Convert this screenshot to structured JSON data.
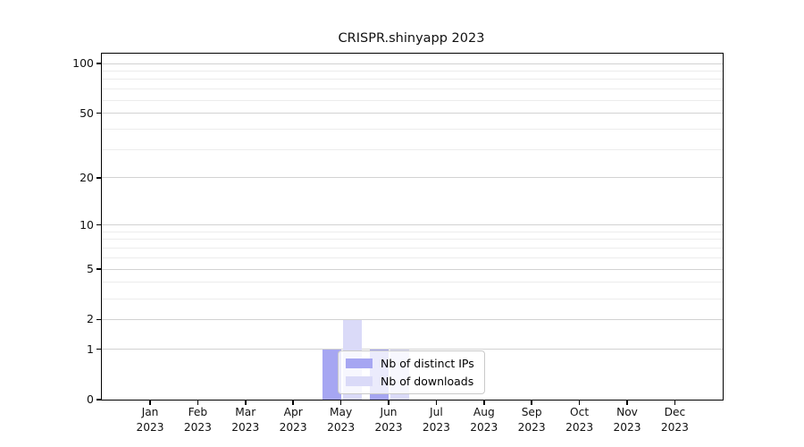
{
  "chart_data": {
    "type": "bar",
    "title": "CRISPR.shinyapp 2023",
    "categories": [
      "Jan 2023",
      "Feb 2023",
      "Mar 2023",
      "Apr 2023",
      "May 2023",
      "Jun 2023",
      "Jul 2023",
      "Aug 2023",
      "Sep 2023",
      "Oct 2023",
      "Nov 2023",
      "Dec 2023"
    ],
    "series": [
      {
        "name": "Nb of distinct IPs",
        "color": "#a6a6f2",
        "values": [
          0,
          0,
          0,
          0,
          1,
          1,
          0,
          0,
          0,
          0,
          0,
          0
        ]
      },
      {
        "name": "Nb of downloads",
        "color": "#dadaf8",
        "values": [
          0,
          0,
          0,
          0,
          2,
          1,
          0,
          0,
          0,
          0,
          0,
          0
        ]
      }
    ],
    "xlabel": "",
    "ylabel": "",
    "yscale": "log1p",
    "ylim": [
      0,
      115
    ],
    "y_ticks": [
      0,
      1,
      2,
      5,
      10,
      20,
      50,
      100
    ],
    "y_minor_gridlines": [
      3,
      4,
      6,
      7,
      8,
      9,
      30,
      40,
      60,
      70,
      80,
      90
    ],
    "grid": true,
    "legend_position": "inside-bottom-center",
    "colors": {
      "grid_major": "#d2d2d2",
      "grid_minor": "#ececec",
      "axis": "#000000",
      "background": "#ffffff"
    }
  }
}
